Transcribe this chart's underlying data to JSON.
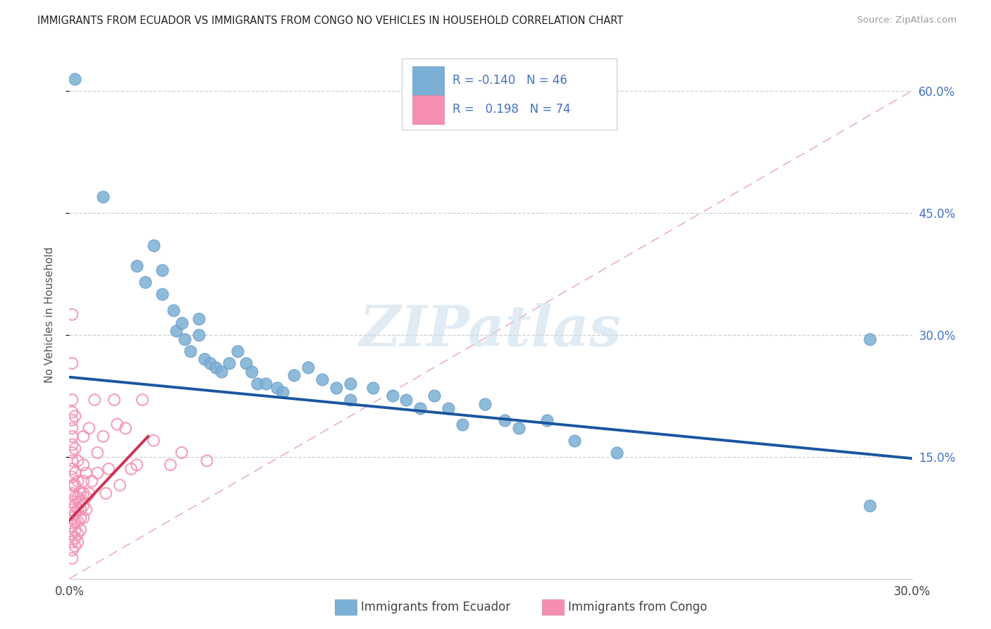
{
  "title": "IMMIGRANTS FROM ECUADOR VS IMMIGRANTS FROM CONGO NO VEHICLES IN HOUSEHOLD CORRELATION CHART",
  "source": "Source: ZipAtlas.com",
  "ylabel": "No Vehicles in Household",
  "xlim": [
    0.0,
    0.3
  ],
  "ylim": [
    0.0,
    0.65
  ],
  "x_ticks": [
    0.0,
    0.05,
    0.1,
    0.15,
    0.2,
    0.25,
    0.3
  ],
  "x_tick_labels": [
    "0.0%",
    "",
    "",
    "",
    "",
    "",
    "30.0%"
  ],
  "y_ticks": [
    0.15,
    0.3,
    0.45,
    0.6
  ],
  "y_tick_labels_right": [
    "15.0%",
    "30.0%",
    "45.0%",
    "60.0%"
  ],
  "watermark": "ZIPatlas",
  "ecuador_color": "#7bafd4",
  "ecuador_edge": "#6699cc",
  "congo_color": "#f48fb1",
  "trendline_ecuador_color": "#1a56a0",
  "trendline_congo_color": "#cc3355",
  "diagonal_color": "#e8b4bc",
  "ecuador_trendline": [
    [
      0.0,
      0.248
    ],
    [
      0.3,
      0.148
    ]
  ],
  "congo_trendline": [
    [
      0.0,
      0.072
    ],
    [
      0.028,
      0.175
    ]
  ],
  "diagonal_line": [
    [
      0.0,
      0.0
    ],
    [
      0.3,
      0.6
    ]
  ],
  "ecuador_points": [
    [
      0.002,
      0.615
    ],
    [
      0.012,
      0.47
    ],
    [
      0.024,
      0.385
    ],
    [
      0.027,
      0.365
    ],
    [
      0.03,
      0.41
    ],
    [
      0.033,
      0.38
    ],
    [
      0.033,
      0.35
    ],
    [
      0.037,
      0.33
    ],
    [
      0.038,
      0.305
    ],
    [
      0.04,
      0.315
    ],
    [
      0.041,
      0.295
    ],
    [
      0.043,
      0.28
    ],
    [
      0.046,
      0.32
    ],
    [
      0.046,
      0.3
    ],
    [
      0.048,
      0.27
    ],
    [
      0.05,
      0.265
    ],
    [
      0.052,
      0.26
    ],
    [
      0.054,
      0.255
    ],
    [
      0.057,
      0.265
    ],
    [
      0.06,
      0.28
    ],
    [
      0.063,
      0.265
    ],
    [
      0.065,
      0.255
    ],
    [
      0.067,
      0.24
    ],
    [
      0.07,
      0.24
    ],
    [
      0.074,
      0.235
    ],
    [
      0.076,
      0.23
    ],
    [
      0.08,
      0.25
    ],
    [
      0.085,
      0.26
    ],
    [
      0.09,
      0.245
    ],
    [
      0.095,
      0.235
    ],
    [
      0.1,
      0.24
    ],
    [
      0.1,
      0.22
    ],
    [
      0.108,
      0.235
    ],
    [
      0.115,
      0.225
    ],
    [
      0.12,
      0.22
    ],
    [
      0.125,
      0.21
    ],
    [
      0.13,
      0.225
    ],
    [
      0.135,
      0.21
    ],
    [
      0.14,
      0.19
    ],
    [
      0.148,
      0.215
    ],
    [
      0.155,
      0.195
    ],
    [
      0.16,
      0.185
    ],
    [
      0.17,
      0.195
    ],
    [
      0.18,
      0.17
    ],
    [
      0.195,
      0.155
    ],
    [
      0.285,
      0.09
    ],
    [
      0.285,
      0.295
    ]
  ],
  "congo_points": [
    [
      0.001,
      0.325
    ],
    [
      0.001,
      0.265
    ],
    [
      0.001,
      0.22
    ],
    [
      0.001,
      0.205
    ],
    [
      0.001,
      0.195
    ],
    [
      0.001,
      0.185
    ],
    [
      0.001,
      0.175
    ],
    [
      0.001,
      0.165
    ],
    [
      0.001,
      0.155
    ],
    [
      0.001,
      0.145
    ],
    [
      0.001,
      0.135
    ],
    [
      0.001,
      0.125
    ],
    [
      0.001,
      0.115
    ],
    [
      0.001,
      0.105
    ],
    [
      0.001,
      0.095
    ],
    [
      0.001,
      0.085
    ],
    [
      0.001,
      0.075
    ],
    [
      0.001,
      0.065
    ],
    [
      0.001,
      0.055
    ],
    [
      0.001,
      0.045
    ],
    [
      0.001,
      0.035
    ],
    [
      0.001,
      0.025
    ],
    [
      0.002,
      0.04
    ],
    [
      0.002,
      0.05
    ],
    [
      0.002,
      0.06
    ],
    [
      0.002,
      0.07
    ],
    [
      0.002,
      0.08
    ],
    [
      0.002,
      0.09
    ],
    [
      0.002,
      0.1
    ],
    [
      0.002,
      0.115
    ],
    [
      0.002,
      0.13
    ],
    [
      0.002,
      0.16
    ],
    [
      0.002,
      0.2
    ],
    [
      0.003,
      0.045
    ],
    [
      0.003,
      0.055
    ],
    [
      0.003,
      0.07
    ],
    [
      0.003,
      0.085
    ],
    [
      0.003,
      0.1
    ],
    [
      0.003,
      0.12
    ],
    [
      0.003,
      0.145
    ],
    [
      0.004,
      0.06
    ],
    [
      0.004,
      0.075
    ],
    [
      0.004,
      0.085
    ],
    [
      0.004,
      0.095
    ],
    [
      0.004,
      0.105
    ],
    [
      0.005,
      0.075
    ],
    [
      0.005,
      0.09
    ],
    [
      0.005,
      0.105
    ],
    [
      0.005,
      0.12
    ],
    [
      0.005,
      0.14
    ],
    [
      0.005,
      0.175
    ],
    [
      0.006,
      0.085
    ],
    [
      0.006,
      0.1
    ],
    [
      0.006,
      0.13
    ],
    [
      0.007,
      0.105
    ],
    [
      0.007,
      0.185
    ],
    [
      0.008,
      0.12
    ],
    [
      0.009,
      0.22
    ],
    [
      0.01,
      0.13
    ],
    [
      0.01,
      0.155
    ],
    [
      0.012,
      0.175
    ],
    [
      0.013,
      0.105
    ],
    [
      0.014,
      0.135
    ],
    [
      0.016,
      0.22
    ],
    [
      0.017,
      0.19
    ],
    [
      0.018,
      0.115
    ],
    [
      0.02,
      0.185
    ],
    [
      0.022,
      0.135
    ],
    [
      0.024,
      0.14
    ],
    [
      0.026,
      0.22
    ],
    [
      0.03,
      0.17
    ],
    [
      0.036,
      0.14
    ],
    [
      0.04,
      0.155
    ],
    [
      0.049,
      0.145
    ]
  ]
}
